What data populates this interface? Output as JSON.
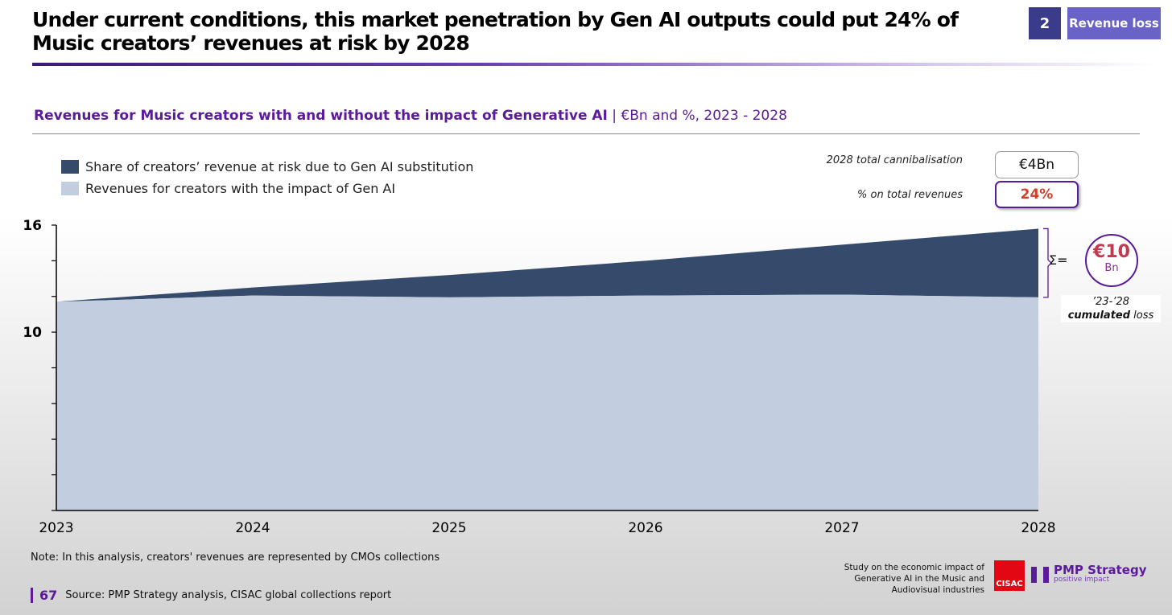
{
  "header": {
    "title": "Under current conditions, this market penetration by Gen AI outputs could put 24% of Music creators’ revenues at risk by 2028",
    "section_number": "2",
    "section_label": "Revenue loss"
  },
  "subtitle": {
    "bold": "Revenues for Music creators with and without the impact of Generative AI",
    "rest": " | €Bn and %, 2023 - 2028"
  },
  "kpis": {
    "total_label": "2028 total cannibalisation",
    "total_value": "€4Bn",
    "pct_label": "% on total revenues",
    "pct_value": "24%"
  },
  "cumulated": {
    "sigma": "Σ=",
    "value": "€10",
    "unit": "Bn",
    "caption_years": "’23-’28",
    "caption_bold": "cumulated",
    "caption_rest": " loss"
  },
  "colors": {
    "at_risk": "#364b6b",
    "with_ai": "#c3cde0",
    "accent": "#5a1a9a",
    "orange": "#f04e23"
  },
  "chart_data": {
    "type": "area",
    "title": "Revenues for Music creators with and without the impact of Generative AI",
    "x": [
      "2023",
      "2024",
      "2025",
      "2026",
      "2027",
      "2028"
    ],
    "ylim": [
      0,
      16
    ],
    "yticks": [
      0,
      2,
      4,
      6,
      8,
      10,
      12,
      14,
      16
    ],
    "ytick_labels": {
      "10": "10",
      "16": "16"
    },
    "series": [
      {
        "name": "Revenues for creators with the impact of Gen AI",
        "values": [
          11.7,
          12.05,
          11.95,
          12.05,
          12.1,
          11.95
        ]
      },
      {
        "name": "Share of creators’ revenue at risk due to Gen AI substitution",
        "values": [
          0,
          0.45,
          1.25,
          1.95,
          2.8,
          3.85
        ]
      }
    ],
    "stacked": true,
    "legend": "top-left"
  },
  "footer": {
    "note": "Note: In this analysis, creators' revenues are represented by CMOs collections",
    "page": "67",
    "source": "Source:  PMP Strategy analysis, CISAC global collections report",
    "study": "Study on the economic impact of Generative AI in the Music and Audiovisual industries",
    "logo1": "CISAC",
    "logo2": "PMP Strategy",
    "logo2_tag": "positive impact"
  }
}
